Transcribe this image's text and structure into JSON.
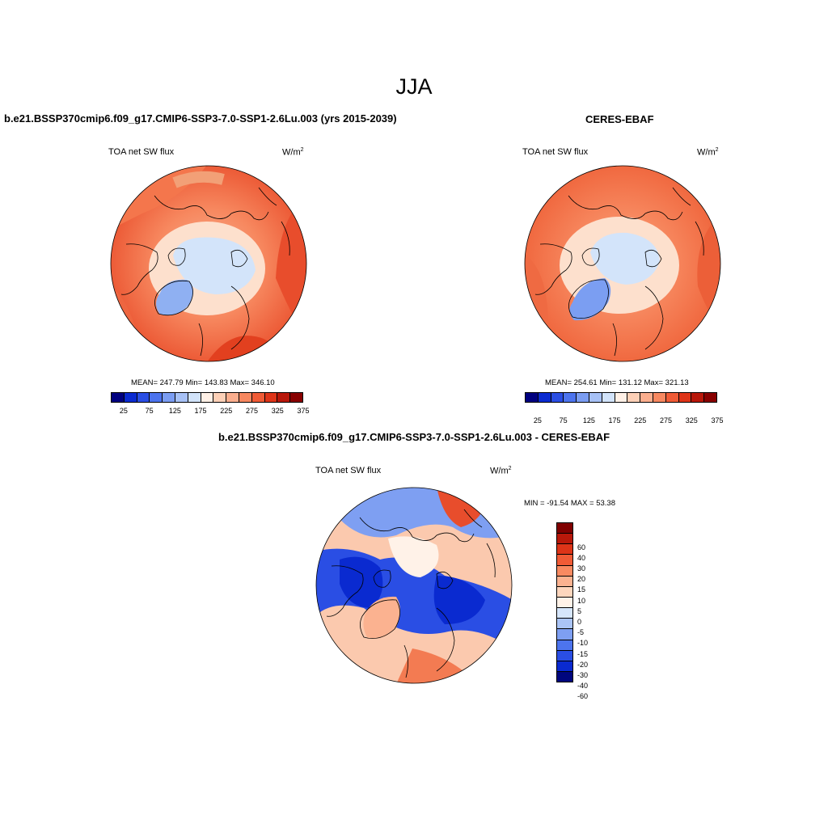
{
  "figure": {
    "season": "JJA"
  },
  "panels": {
    "model": {
      "title": "b.e21.BSSP370cmip6.f09_g17.CMIP6-SSP3-7.0-SSP1-2.6Lu.003 (yrs 2015-2039)",
      "variable": "TOA net SW flux",
      "unit_base": "W/m",
      "unit_exp": "2",
      "stats": "MEAN= 247.79  Min= 143.83  Max= 346.10"
    },
    "obs": {
      "title": "CERES-EBAF",
      "variable": "TOA net SW flux",
      "unit_base": "W/m",
      "unit_exp": "2",
      "stats": "MEAN= 254.61  Min= 131.12  Max= 321.13"
    },
    "diff": {
      "title": "b.e21.BSSP370cmip6.f09_g17.CMIP6-SSP3-7.0-SSP1-2.6Lu.003 - CERES-EBAF",
      "variable": "TOA net SW flux",
      "unit_base": "W/m",
      "unit_exp": "2",
      "stats": "MIN = -91.54 MAX =  53.38"
    }
  },
  "colorbar_abs": {
    "colors": [
      "#00007f",
      "#0a2ad0",
      "#2a4ee4",
      "#4d74ee",
      "#7b9df2",
      "#a7c1f6",
      "#d2e3fa",
      "#fff0e6",
      "#fdd0b7",
      "#fbae8e",
      "#f78860",
      "#f05b36",
      "#de3418",
      "#b8170a",
      "#880000"
    ],
    "labels": [
      "25",
      "75",
      "125",
      "175",
      "225",
      "275",
      "325",
      "375"
    ]
  },
  "colorbar_diff": {
    "colors": [
      "#800000",
      "#b8180a",
      "#dd3418",
      "#f05b36",
      "#f88a61",
      "#fbb290",
      "#fdd6bd",
      "#fff2e8",
      "#d6e6fb",
      "#aac4f6",
      "#7e9ff2",
      "#4d74ee",
      "#2a4ee4",
      "#0a2ad0",
      "#00067e"
    ],
    "labels": [
      "60",
      "40",
      "30",
      "20",
      "15",
      "10",
      "5",
      "0",
      "-5",
      "-10",
      "-15",
      "-20",
      "-30",
      "-40",
      "-60"
    ]
  }
}
